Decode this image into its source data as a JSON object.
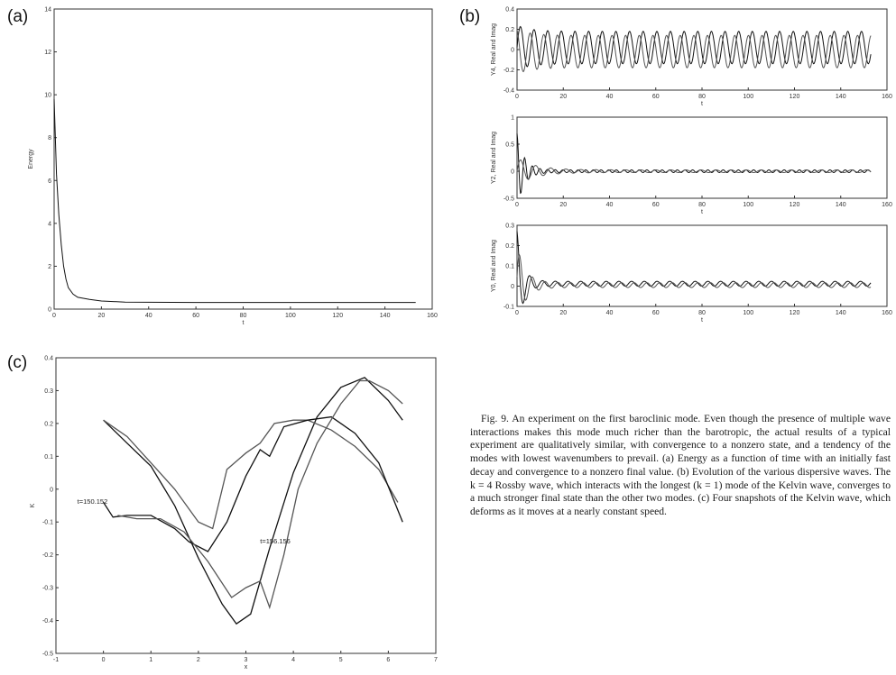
{
  "panel_labels": {
    "a": "(a)",
    "b": "(b)",
    "c": "(c)"
  },
  "caption": {
    "fig_label": "Fig. 9.",
    "text": "An experiment on the first baroclinic mode. Even though the presence of multiple wave interactions makes this mode much richer than the barotropic, the actual results of a typical experiment are qualitatively similar, with convergence to a nonzero state, and a tendency of the modes with lowest wavenumbers to prevail. (a) Energy as a function of time with an initially fast decay and convergence to a nonzero final value. (b) Evolution of the various dispersive waves. The k = 4 Rossby wave, which interacts with the longest (k = 1) mode of the Kelvin wave, converges to a much stronger final state than the other two modes. (c) Four snapshots of the Kelvin wave, which deforms as it moves at a nearly constant speed."
  },
  "chart_data": [
    {
      "id": "a",
      "type": "line",
      "xlabel": "t",
      "ylabel": "Energy",
      "xlim": [
        0,
        160
      ],
      "ylim": [
        0,
        14
      ],
      "xticks": [
        0,
        20,
        40,
        60,
        80,
        100,
        120,
        140,
        160
      ],
      "yticks": [
        0,
        2,
        4,
        6,
        8,
        10,
        12,
        14
      ],
      "xtick_labels": [
        "0",
        "20",
        "40",
        "60",
        "80",
        "100",
        "120",
        "140",
        "160"
      ],
      "ytick_labels": [
        "0",
        "2",
        "4",
        "6",
        "8",
        "10",
        "12",
        "14"
      ],
      "series": [
        {
          "x": [
            0,
            1,
            2,
            3,
            4,
            5,
            6,
            8,
            10,
            15,
            20,
            30,
            40,
            60,
            80,
            100,
            120,
            140,
            153
          ],
          "y": [
            9.8,
            6.3,
            4.4,
            3.0,
            2.0,
            1.4,
            1.0,
            0.7,
            0.55,
            0.45,
            0.38,
            0.33,
            0.32,
            0.31,
            0.31,
            0.31,
            0.31,
            0.31,
            0.31
          ]
        }
      ]
    },
    {
      "id": "b1",
      "type": "line",
      "xlabel": "t",
      "ylabel": "Y4, Real and Imag",
      "xlim": [
        0,
        160
      ],
      "ylim": [
        -0.4,
        0.4
      ],
      "xticks": [
        0,
        20,
        40,
        60,
        80,
        100,
        120,
        140,
        160
      ],
      "yticks": [
        -0.4,
        -0.2,
        0,
        0.2,
        0.4
      ],
      "xtick_labels": [
        "0",
        "20",
        "40",
        "60",
        "80",
        "100",
        "120",
        "140",
        "160"
      ],
      "ytick_labels": [
        "-0.4",
        "-0.2",
        "0",
        "0.2",
        "0.4"
      ],
      "series": [
        {
          "fn": "sin",
          "amp": 0.16,
          "amp0": 0.22,
          "decay": 6,
          "period": 5.9,
          "phase": 0,
          "offset": 0.02
        },
        {
          "fn": "sin",
          "amp": 0.16,
          "amp0": 0.22,
          "decay": 6,
          "period": 5.9,
          "phase": 1.8,
          "offset": -0.02
        }
      ]
    },
    {
      "id": "b2",
      "type": "line",
      "xlabel": "t",
      "ylabel": "Y2, Real and Imag",
      "xlim": [
        0,
        160
      ],
      "ylim": [
        -0.5,
        1
      ],
      "xticks": [
        0,
        20,
        40,
        60,
        80,
        100,
        120,
        140,
        160
      ],
      "yticks": [
        -0.5,
        0,
        0.5,
        1
      ],
      "xtick_labels": [
        "0",
        "20",
        "40",
        "60",
        "80",
        "100",
        "120",
        "140",
        "160"
      ],
      "ytick_labels": [
        "-0.5",
        "0",
        "0.5",
        "1"
      ],
      "series": [
        {
          "fn": "sin",
          "amp": 0.025,
          "amp0": 0.7,
          "decay": 3,
          "period": 3.3,
          "phase": 1.5,
          "offset": 0
        },
        {
          "fn": "sin",
          "amp": 0.025,
          "amp0": 0.25,
          "decay": 8,
          "period": 6.5,
          "phase": 0,
          "offset": 0
        }
      ]
    },
    {
      "id": "b3",
      "type": "line",
      "xlabel": "t",
      "ylabel": "Y0, Real and Imag",
      "xlim": [
        0,
        160
      ],
      "ylim": [
        -0.1,
        0.3
      ],
      "xticks": [
        0,
        20,
        40,
        60,
        80,
        100,
        120,
        140,
        160
      ],
      "yticks": [
        -0.1,
        0,
        0.1,
        0.2,
        0.3
      ],
      "xtick_labels": [
        "0",
        "20",
        "40",
        "60",
        "80",
        "100",
        "120",
        "140",
        "160"
      ],
      "ytick_labels": [
        "-0.1",
        "0",
        "0.1",
        "0.2",
        "0.3"
      ],
      "series": [
        {
          "fn": "sin",
          "amp": 0.012,
          "amp0": 0.26,
          "decay": 2.5,
          "period": 5.5,
          "phase": 1.5,
          "offset": 0.012
        },
        {
          "fn": "sin",
          "amp": 0.012,
          "amp0": 0.2,
          "decay": 3.5,
          "period": 5.5,
          "phase": 0.2,
          "offset": 0.005
        }
      ]
    },
    {
      "id": "c",
      "type": "line",
      "xlabel": "x",
      "ylabel": "K",
      "xlim": [
        -1,
        7
      ],
      "ylim": [
        -0.5,
        0.4
      ],
      "xticks": [
        -1,
        0,
        1,
        2,
        3,
        4,
        5,
        6,
        7
      ],
      "yticks": [
        -0.5,
        -0.4,
        -0.3,
        -0.2,
        -0.1,
        0,
        0.1,
        0.2,
        0.3,
        0.4
      ],
      "xtick_labels": [
        "-1",
        "0",
        "1",
        "2",
        "3",
        "4",
        "5",
        "6",
        "7"
      ],
      "ytick_labels": [
        "-0.5",
        "-0.4",
        "-0.3",
        "-0.2",
        "-0.1",
        "0",
        "0.1",
        "0.2",
        "0.3",
        "0.4"
      ],
      "annotations": [
        {
          "text": "t=150.152",
          "x": -0.55,
          "y": -0.045
        },
        {
          "text": "t=156.156",
          "x": 3.3,
          "y": -0.165
        }
      ],
      "series": [
        {
          "x": [
            0,
            0.5,
            1,
            1.5,
            2,
            2.5,
            2.8,
            3.1,
            3.5,
            4,
            4.5,
            5,
            5.5,
            6,
            6.3
          ],
          "y": [
            0.21,
            0.14,
            0.07,
            -0.05,
            -0.21,
            -0.35,
            -0.41,
            -0.38,
            -0.18,
            0.05,
            0.22,
            0.31,
            0.34,
            0.27,
            0.21
          ]
        },
        {
          "x": [
            0,
            0.5,
            1,
            1.5,
            2,
            2.3,
            2.6,
            3,
            3.3,
            3.6,
            4,
            4.3,
            4.8,
            5.3,
            5.8,
            6.2
          ],
          "y": [
            0.21,
            0.16,
            0.08,
            0.0,
            -0.1,
            -0.12,
            0.06,
            0.11,
            0.14,
            0.2,
            0.21,
            0.21,
            0.18,
            0.13,
            0.06,
            -0.04
          ]
        },
        {
          "x": [
            0,
            0.2,
            0.5,
            1,
            1.5,
            1.8,
            2.2,
            2.6,
            3,
            3.3,
            3.5,
            3.8,
            4.3,
            4.8,
            5.3,
            5.8,
            6.3
          ],
          "y": [
            -0.04,
            -0.085,
            -0.08,
            -0.08,
            -0.12,
            -0.16,
            -0.19,
            -0.1,
            0.04,
            0.12,
            0.1,
            0.19,
            0.21,
            0.22,
            0.17,
            0.08,
            -0.1
          ]
        },
        {
          "x": [
            0.3,
            0.7,
            1.2,
            1.7,
            2.2,
            2.7,
            3.0,
            3.3,
            3.5,
            3.8,
            4.1,
            4.5,
            5.0,
            5.4,
            5.6,
            6.0,
            6.3
          ],
          "y": [
            -0.08,
            -0.09,
            -0.09,
            -0.13,
            -0.22,
            -0.33,
            -0.3,
            -0.28,
            -0.36,
            -0.2,
            0.0,
            0.14,
            0.26,
            0.33,
            0.33,
            0.3,
            0.26
          ]
        }
      ]
    }
  ]
}
